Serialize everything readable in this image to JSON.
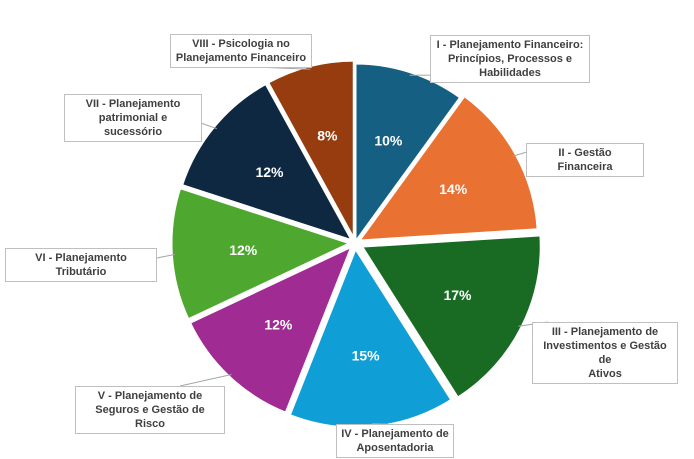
{
  "chart_data": {
    "type": "pie",
    "title": "",
    "start_angle_deg": 0,
    "direction": "clockwise",
    "slices": [
      {
        "label": "I - Planejamento Financeiro:\nPrincípios, Processos e\nHabilidades",
        "value": 10,
        "value_label": "10%",
        "color": "#156082"
      },
      {
        "label": "II - Gestão Financeira",
        "value": 14,
        "value_label": "14%",
        "color": "#E97132"
      },
      {
        "label": "III - Planejamento de\nInvestimentos e Gestão de\nAtivos",
        "value": 17,
        "value_label": "17%",
        "color": "#196B24"
      },
      {
        "label": "IV - Planejamento de\nAposentadoria",
        "value": 15,
        "value_label": "15%",
        "color": "#0F9ED5"
      },
      {
        "label": "V - Planejamento de\nSeguros e Gestão de Risco",
        "value": 12,
        "value_label": "12%",
        "color": "#A02B93"
      },
      {
        "label": "VI - Planejamento Tributário",
        "value": 12,
        "value_label": "12%",
        "color": "#4EA72E"
      },
      {
        "label": "VII - Planejamento\npatrimonial e sucessório",
        "value": 12,
        "value_label": "12%",
        "color": "#0E2841"
      },
      {
        "label": "VIII - Psicologia no\nPlanejamento Financeiro",
        "value": 8,
        "value_label": "8%",
        "color": "#963C0E"
      }
    ]
  }
}
